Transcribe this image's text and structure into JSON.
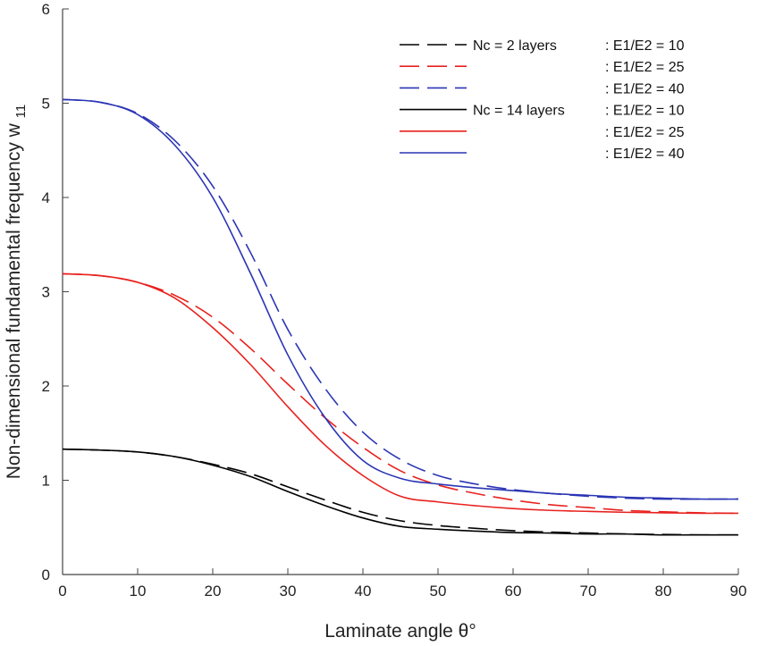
{
  "chart_data": {
    "type": "line",
    "title": "",
    "xlabel": "Laminate angle θ°",
    "ylabel": "Non-dimensional fundamental frequency w",
    "ylabel_sub": "11",
    "xlim": [
      0,
      90
    ],
    "ylim": [
      0,
      6
    ],
    "xticks": [
      0,
      10,
      20,
      30,
      40,
      50,
      60,
      70,
      80,
      90
    ],
    "yticks": [
      0,
      1,
      2,
      3,
      4,
      5,
      6
    ],
    "grid": false,
    "legend_position": "top-right",
    "x": [
      0,
      5,
      10,
      15,
      20,
      25,
      30,
      35,
      40,
      45,
      50,
      55,
      60,
      65,
      70,
      75,
      80,
      85,
      90
    ],
    "series": [
      {
        "name": "Nc = 2 layers : E1/E2 = 10",
        "group": "Nc = 2 layers",
        "ratio": ": E1/E2 = 10",
        "color": "#000000",
        "dash": true,
        "values": [
          1.33,
          1.32,
          1.3,
          1.25,
          1.17,
          1.07,
          0.93,
          0.79,
          0.66,
          0.57,
          0.52,
          0.49,
          0.465,
          0.45,
          0.44,
          0.43,
          0.425,
          0.42,
          0.42
        ]
      },
      {
        "name": "Nc = 2 layers : E1/E2 = 25",
        "group": "",
        "ratio": ": E1/E2 = 25",
        "color": "#e8221f",
        "dash": true,
        "values": [
          3.19,
          3.17,
          3.1,
          2.96,
          2.73,
          2.4,
          2.02,
          1.66,
          1.35,
          1.1,
          0.95,
          0.86,
          0.79,
          0.74,
          0.71,
          0.68,
          0.665,
          0.655,
          0.65
        ]
      },
      {
        "name": "Nc = 2 layers : E1/E2 = 40",
        "group": "",
        "ratio": ": E1/E2 = 40",
        "color": "#2b35b4",
        "dash": true,
        "values": [
          5.04,
          5.01,
          4.89,
          4.6,
          4.12,
          3.42,
          2.6,
          1.97,
          1.51,
          1.22,
          1.05,
          0.96,
          0.9,
          0.86,
          0.83,
          0.81,
          0.8,
          0.8,
          0.8
        ]
      },
      {
        "name": "Nc = 14 layers : E1/E2 = 10",
        "group": "Nc = 14 layers",
        "ratio": ": E1/E2 = 10",
        "color": "#000000",
        "dash": false,
        "values": [
          1.33,
          1.32,
          1.3,
          1.25,
          1.16,
          1.04,
          0.88,
          0.73,
          0.6,
          0.51,
          0.48,
          0.46,
          0.445,
          0.44,
          0.43,
          0.43,
          0.42,
          0.42,
          0.42
        ]
      },
      {
        "name": "Nc = 14 layers : E1/E2 = 25",
        "group": "",
        "ratio": ": E1/E2 = 25",
        "color": "#e8221f",
        "dash": false,
        "values": [
          3.19,
          3.17,
          3.1,
          2.93,
          2.62,
          2.23,
          1.78,
          1.37,
          1.05,
          0.83,
          0.77,
          0.73,
          0.7,
          0.68,
          0.67,
          0.66,
          0.655,
          0.65,
          0.65
        ]
      },
      {
        "name": "Nc = 14 layers : E1/E2 = 40",
        "group": "",
        "ratio": ": E1/E2 = 40",
        "color": "#2b35b4",
        "dash": false,
        "values": [
          5.04,
          5.01,
          4.88,
          4.55,
          4.0,
          3.2,
          2.33,
          1.66,
          1.21,
          1.02,
          0.96,
          0.92,
          0.89,
          0.86,
          0.84,
          0.82,
          0.81,
          0.8,
          0.8
        ]
      }
    ]
  }
}
